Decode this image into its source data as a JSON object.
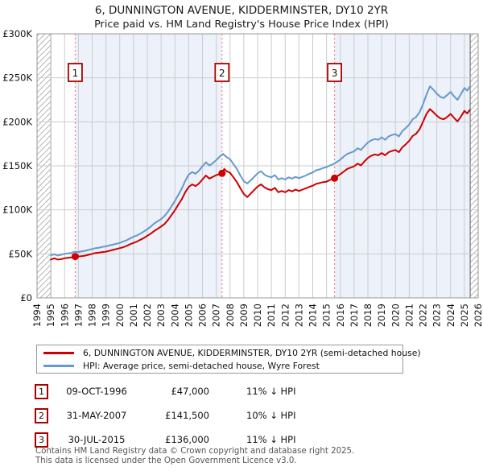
{
  "title": "6, DUNNINGTON AVENUE, KIDDERMINSTER, DY10 2YR",
  "subtitle": "Price paid vs. HM Land Registry's House Price Index (HPI)",
  "colors": {
    "property_line": "#cc0000",
    "hpi_line": "#6699cc",
    "event_line": "#ff8080",
    "shade": "#ecf1fa",
    "grid": "#cccccc",
    "plot_border": "#999999",
    "hatch": "#b3b3b3",
    "hatch_edge": "#777777",
    "event_box_border": "#aa0000",
    "marker": "#cc0000"
  },
  "chart_data": {
    "type": "line",
    "title": "6, DUNNINGTON AVENUE, KIDDERMINSTER, DY10 2YR — Price paid vs. HPI",
    "xlabel": "",
    "ylabel": "",
    "xlim": [
      1994,
      2026
    ],
    "ylim": [
      0,
      300000
    ],
    "grid": true,
    "x_ticks": [
      1994,
      1995,
      1996,
      1997,
      1998,
      1999,
      2000,
      2001,
      2002,
      2003,
      2004,
      2005,
      2006,
      2007,
      2008,
      2009,
      2010,
      2011,
      2012,
      2013,
      2014,
      2015,
      2016,
      2017,
      2018,
      2019,
      2020,
      2021,
      2022,
      2023,
      2024,
      2025,
      2026
    ],
    "y_ticks": [
      {
        "value": 0,
        "label": "£0"
      },
      {
        "value": 50000,
        "label": "£50K"
      },
      {
        "value": 100000,
        "label": "£100K"
      },
      {
        "value": 150000,
        "label": "£150K"
      },
      {
        "value": 200000,
        "label": "£200K"
      },
      {
        "value": 250000,
        "label": "£250K"
      },
      {
        "value": 300000,
        "label": "£300K"
      }
    ],
    "series": [
      {
        "name": "6, DUNNINGTON AVENUE, KIDDERMINSTER, DY10 2YR (semi-detached house)",
        "color": "#cc0000",
        "points": [
          [
            1995.0,
            43500
          ],
          [
            1995.25,
            45000
          ],
          [
            1995.5,
            43500
          ],
          [
            1995.75,
            44000
          ],
          [
            1996.0,
            45000
          ],
          [
            1996.25,
            45500
          ],
          [
            1996.5,
            46000
          ],
          [
            1996.77,
            47000
          ],
          [
            1997.0,
            47000
          ],
          [
            1997.25,
            47500
          ],
          [
            1997.5,
            48000
          ],
          [
            1997.75,
            49000
          ],
          [
            1998.0,
            50000
          ],
          [
            1998.25,
            51000
          ],
          [
            1998.5,
            51500
          ],
          [
            1998.75,
            52000
          ],
          [
            1999.0,
            52500
          ],
          [
            1999.25,
            53500
          ],
          [
            1999.5,
            54500
          ],
          [
            1999.75,
            55500
          ],
          [
            2000.0,
            56500
          ],
          [
            2000.25,
            57500
          ],
          [
            2000.5,
            59000
          ],
          [
            2000.75,
            61000
          ],
          [
            2001.0,
            62500
          ],
          [
            2001.25,
            64000
          ],
          [
            2001.5,
            66000
          ],
          [
            2001.75,
            68000
          ],
          [
            2002.0,
            70500
          ],
          [
            2002.25,
            73000
          ],
          [
            2002.5,
            76000
          ],
          [
            2002.75,
            78500
          ],
          [
            2003.0,
            81000
          ],
          [
            2003.25,
            84000
          ],
          [
            2003.5,
            88500
          ],
          [
            2003.75,
            94000
          ],
          [
            2004.0,
            99500
          ],
          [
            2004.25,
            106000
          ],
          [
            2004.5,
            112000
          ],
          [
            2004.75,
            120000
          ],
          [
            2005.0,
            126000
          ],
          [
            2005.25,
            129000
          ],
          [
            2005.5,
            127000
          ],
          [
            2005.75,
            130000
          ],
          [
            2006.0,
            134500
          ],
          [
            2006.25,
            139000
          ],
          [
            2006.5,
            135500
          ],
          [
            2006.75,
            137500
          ],
          [
            2007.0,
            139500
          ],
          [
            2007.42,
            141500
          ],
          [
            2007.58,
            146500
          ],
          [
            2007.75,
            144000
          ],
          [
            2008.0,
            142000
          ],
          [
            2008.25,
            137000
          ],
          [
            2008.5,
            131500
          ],
          [
            2008.75,
            124500
          ],
          [
            2009.0,
            118000
          ],
          [
            2009.25,
            114500
          ],
          [
            2009.5,
            118500
          ],
          [
            2009.75,
            122500
          ],
          [
            2010.0,
            126500
          ],
          [
            2010.25,
            129000
          ],
          [
            2010.5,
            125500
          ],
          [
            2010.75,
            123500
          ],
          [
            2011.0,
            122500
          ],
          [
            2011.25,
            125000
          ],
          [
            2011.5,
            120000
          ],
          [
            2011.75,
            121500
          ],
          [
            2012.0,
            120000
          ],
          [
            2012.25,
            122500
          ],
          [
            2012.5,
            121000
          ],
          [
            2012.75,
            123000
          ],
          [
            2013.0,
            121500
          ],
          [
            2013.25,
            123000
          ],
          [
            2013.5,
            124500
          ],
          [
            2013.75,
            126000
          ],
          [
            2014.0,
            127500
          ],
          [
            2014.25,
            129500
          ],
          [
            2014.5,
            130500
          ],
          [
            2014.75,
            131500
          ],
          [
            2015.0,
            132000
          ],
          [
            2015.25,
            134000
          ],
          [
            2015.58,
            136000
          ],
          [
            2015.75,
            138000
          ],
          [
            2016.0,
            140500
          ],
          [
            2016.25,
            143500
          ],
          [
            2016.5,
            146500
          ],
          [
            2016.75,
            148000
          ],
          [
            2017.0,
            149500
          ],
          [
            2017.25,
            152500
          ],
          [
            2017.5,
            150500
          ],
          [
            2017.75,
            155000
          ],
          [
            2018.0,
            159000
          ],
          [
            2018.25,
            161500
          ],
          [
            2018.5,
            163000
          ],
          [
            2018.75,
            162000
          ],
          [
            2019.0,
            164500
          ],
          [
            2019.25,
            162000
          ],
          [
            2019.5,
            165500
          ],
          [
            2019.75,
            167000
          ],
          [
            2020.0,
            168000
          ],
          [
            2020.25,
            165500
          ],
          [
            2020.5,
            171000
          ],
          [
            2020.75,
            174500
          ],
          [
            2021.0,
            178500
          ],
          [
            2021.25,
            184000
          ],
          [
            2021.5,
            186500
          ],
          [
            2021.75,
            191500
          ],
          [
            2022.0,
            200000
          ],
          [
            2022.25,
            209000
          ],
          [
            2022.5,
            214500
          ],
          [
            2022.75,
            211000
          ],
          [
            2023.0,
            207000
          ],
          [
            2023.25,
            204000
          ],
          [
            2023.5,
            203000
          ],
          [
            2023.75,
            205500
          ],
          [
            2024.0,
            209000
          ],
          [
            2024.25,
            204500
          ],
          [
            2024.5,
            200500
          ],
          [
            2024.75,
            206000
          ],
          [
            2025.0,
            212500
          ],
          [
            2025.2,
            209500
          ],
          [
            2025.4,
            213500
          ]
        ]
      },
      {
        "name": "HPI: Average price, semi-detached house, Wyre Forest",
        "color": "#6699cc",
        "points": [
          [
            1995.0,
            48500
          ],
          [
            1995.25,
            49500
          ],
          [
            1995.5,
            48000
          ],
          [
            1995.75,
            49000
          ],
          [
            1996.0,
            50000
          ],
          [
            1996.25,
            50500
          ],
          [
            1996.5,
            51000
          ],
          [
            1996.75,
            52500
          ],
          [
            1997.0,
            52000
          ],
          [
            1997.25,
            53000
          ],
          [
            1997.5,
            53500
          ],
          [
            1997.75,
            54500
          ],
          [
            1998.0,
            55500
          ],
          [
            1998.25,
            56500
          ],
          [
            1998.5,
            57000
          ],
          [
            1998.75,
            58000
          ],
          [
            1999.0,
            58500
          ],
          [
            1999.25,
            59500
          ],
          [
            1999.5,
            60500
          ],
          [
            1999.75,
            61500
          ],
          [
            2000.0,
            62500
          ],
          [
            2000.25,
            64000
          ],
          [
            2000.5,
            65500
          ],
          [
            2000.75,
            67500
          ],
          [
            2001.0,
            69500
          ],
          [
            2001.25,
            71000
          ],
          [
            2001.5,
            73000
          ],
          [
            2001.75,
            75500
          ],
          [
            2002.0,
            78000
          ],
          [
            2002.25,
            81000
          ],
          [
            2002.5,
            84500
          ],
          [
            2002.75,
            87000
          ],
          [
            2003.0,
            89500
          ],
          [
            2003.25,
            93000
          ],
          [
            2003.5,
            98000
          ],
          [
            2003.75,
            104000
          ],
          [
            2004.0,
            110000
          ],
          [
            2004.25,
            117000
          ],
          [
            2004.5,
            124000
          ],
          [
            2004.75,
            133000
          ],
          [
            2005.0,
            140000
          ],
          [
            2005.25,
            143000
          ],
          [
            2005.5,
            141000
          ],
          [
            2005.75,
            144500
          ],
          [
            2006.0,
            149500
          ],
          [
            2006.25,
            154000
          ],
          [
            2006.5,
            150500
          ],
          [
            2006.75,
            153000
          ],
          [
            2007.0,
            156500
          ],
          [
            2007.25,
            160500
          ],
          [
            2007.5,
            163500
          ],
          [
            2007.75,
            160000
          ],
          [
            2008.0,
            157500
          ],
          [
            2008.25,
            152000
          ],
          [
            2008.5,
            146500
          ],
          [
            2008.75,
            139000
          ],
          [
            2009.0,
            132500
          ],
          [
            2009.25,
            130000
          ],
          [
            2009.5,
            133500
          ],
          [
            2009.75,
            137500
          ],
          [
            2010.0,
            141500
          ],
          [
            2010.25,
            144000
          ],
          [
            2010.5,
            140000
          ],
          [
            2010.75,
            138000
          ],
          [
            2011.0,
            137000
          ],
          [
            2011.25,
            139500
          ],
          [
            2011.5,
            134500
          ],
          [
            2011.75,
            136000
          ],
          [
            2012.0,
            134500
          ],
          [
            2012.25,
            137000
          ],
          [
            2012.5,
            135500
          ],
          [
            2012.75,
            137500
          ],
          [
            2013.0,
            136000
          ],
          [
            2013.25,
            137500
          ],
          [
            2013.5,
            139000
          ],
          [
            2013.75,
            141000
          ],
          [
            2014.0,
            142500
          ],
          [
            2014.25,
            145000
          ],
          [
            2014.5,
            146000
          ],
          [
            2014.75,
            147500
          ],
          [
            2015.0,
            148500
          ],
          [
            2015.25,
            150500
          ],
          [
            2015.5,
            152000
          ],
          [
            2015.75,
            154500
          ],
          [
            2016.0,
            157000
          ],
          [
            2016.25,
            160500
          ],
          [
            2016.5,
            163500
          ],
          [
            2016.75,
            165000
          ],
          [
            2017.0,
            166500
          ],
          [
            2017.25,
            170000
          ],
          [
            2017.5,
            168000
          ],
          [
            2017.75,
            172500
          ],
          [
            2018.0,
            176500
          ],
          [
            2018.25,
            179000
          ],
          [
            2018.5,
            180500
          ],
          [
            2018.75,
            179500
          ],
          [
            2019.0,
            182500
          ],
          [
            2019.25,
            179500
          ],
          [
            2019.5,
            183500
          ],
          [
            2019.75,
            185000
          ],
          [
            2020.0,
            186000
          ],
          [
            2020.25,
            183500
          ],
          [
            2020.5,
            189500
          ],
          [
            2020.75,
            193000
          ],
          [
            2021.0,
            197000
          ],
          [
            2021.25,
            203000
          ],
          [
            2021.5,
            205500
          ],
          [
            2021.75,
            211000
          ],
          [
            2022.0,
            220000
          ],
          [
            2022.25,
            231000
          ],
          [
            2022.5,
            240500
          ],
          [
            2022.75,
            236500
          ],
          [
            2023.0,
            232000
          ],
          [
            2023.25,
            228500
          ],
          [
            2023.5,
            227000
          ],
          [
            2023.75,
            230500
          ],
          [
            2024.0,
            234000
          ],
          [
            2024.25,
            229000
          ],
          [
            2024.5,
            225000
          ],
          [
            2024.75,
            231500
          ],
          [
            2025.0,
            238500
          ],
          [
            2025.2,
            235500
          ],
          [
            2025.4,
            240000
          ]
        ]
      }
    ],
    "sales": [
      {
        "num": "1",
        "x": 1996.77,
        "price": 47000,
        "date": "09-OCT-1996",
        "price_display": "£47,000",
        "vs_hpi": "11% ↓ HPI"
      },
      {
        "num": "2",
        "x": 2007.42,
        "price": 141500,
        "date": "31-MAY-2007",
        "price_display": "£141,500",
        "vs_hpi": "10% ↓ HPI"
      },
      {
        "num": "3",
        "x": 2015.58,
        "price": 136000,
        "date": "30-JUL-2015",
        "price_display": "£136,000",
        "vs_hpi": "11% ↓ HPI"
      }
    ],
    "shaded_spans": [
      [
        1996.77,
        2007.42
      ],
      [
        2015.58,
        2025.42
      ]
    ],
    "hatch_spans": [
      [
        1994,
        1995
      ],
      [
        2025.42,
        2026
      ]
    ],
    "legend_position": "bottom"
  },
  "legend": {
    "items": [
      {
        "label": "6, DUNNINGTON AVENUE, KIDDERMINSTER, DY10 2YR (semi-detached house)",
        "color": "#cc0000"
      },
      {
        "label": "HPI: Average price, semi-detached house, Wyre Forest",
        "color": "#6699cc"
      }
    ]
  },
  "footer": {
    "line1": "Contains HM Land Registry data © Crown copyright and database right 2025.",
    "line2": "This data is licensed under the Open Government Licence v3.0."
  }
}
